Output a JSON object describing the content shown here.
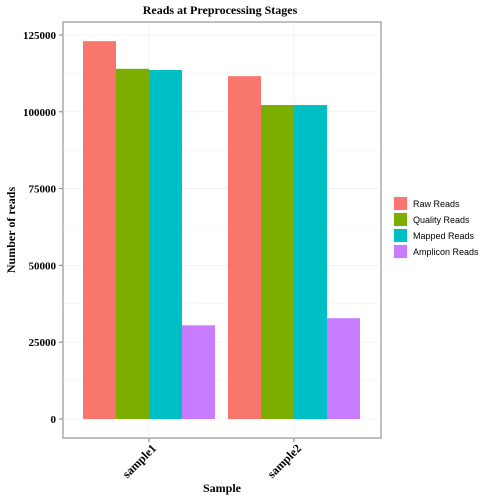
{
  "chart_data": {
    "type": "bar",
    "title": "Reads at Preprocessing Stages",
    "xlabel": "Sample",
    "ylabel": "Number of reads",
    "categories": [
      "sample1",
      "sample2"
    ],
    "series": [
      {
        "name": "Raw Reads",
        "color": "#F8766D",
        "values": [
          123000,
          111600
        ]
      },
      {
        "name": "Quality Reads",
        "color": "#7CAE00",
        "values": [
          114000,
          102200
        ]
      },
      {
        "name": "Mapped Reads",
        "color": "#00BFC4",
        "values": [
          113600,
          102200
        ]
      },
      {
        "name": "Amplicon Reads",
        "color": "#C77CFF",
        "values": [
          30500,
          32800
        ]
      }
    ],
    "ylim": [
      0,
      129000
    ],
    "yticks": [
      0,
      25000,
      50000,
      75000,
      100000,
      125000
    ],
    "ytick_labels": [
      "0",
      "25000",
      "50000",
      "75000",
      "100000",
      "125000"
    ],
    "grid": true,
    "legend_position": "right"
  }
}
